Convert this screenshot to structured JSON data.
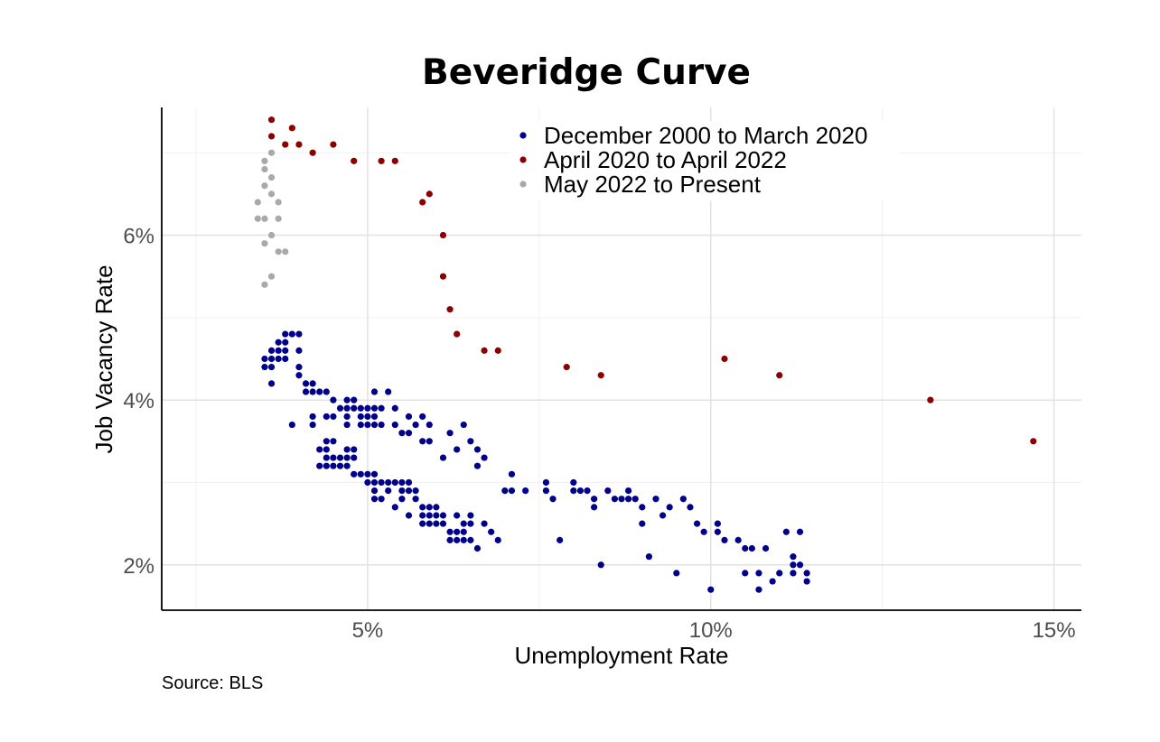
{
  "chart_data": {
    "type": "scatter",
    "title": "Beveridge Curve",
    "xlabel": "Unemployment Rate",
    "ylabel": "Job Vacancy Rate",
    "source": "Source: BLS",
    "xlim": [
      2.0,
      15.4
    ],
    "ylim": [
      1.45,
      7.55
    ],
    "x_ticks": [
      {
        "value": 5,
        "label": "5%"
      },
      {
        "value": 10,
        "label": "10%"
      },
      {
        "value": 15,
        "label": "15%"
      }
    ],
    "y_ticks": [
      {
        "value": 2,
        "label": "2%"
      },
      {
        "value": 4,
        "label": "4%"
      },
      {
        "value": 6,
        "label": "6%"
      }
    ],
    "x_minor": [
      2.5,
      7.5,
      12.5
    ],
    "y_minor": [
      3,
      5,
      7
    ],
    "grid": true,
    "legend_position": "top-right",
    "series": [
      {
        "name": "December 2000 to March 2020",
        "color": "#00008B",
        "points": [
          [
            3.5,
            4.5
          ],
          [
            3.5,
            4.4
          ],
          [
            3.6,
            4.6
          ],
          [
            3.6,
            4.5
          ],
          [
            3.6,
            4.4
          ],
          [
            3.6,
            4.2
          ],
          [
            3.7,
            4.7
          ],
          [
            3.7,
            4.6
          ],
          [
            3.7,
            4.5
          ],
          [
            3.8,
            4.8
          ],
          [
            3.8,
            4.7
          ],
          [
            3.8,
            4.6
          ],
          [
            3.8,
            4.5
          ],
          [
            3.9,
            4.8
          ],
          [
            4.0,
            4.8
          ],
          [
            4.0,
            4.6
          ],
          [
            4.0,
            4.4
          ],
          [
            4.0,
            4.3
          ],
          [
            3.9,
            3.7
          ],
          [
            4.1,
            4.2
          ],
          [
            4.1,
            4.1
          ],
          [
            4.2,
            4.2
          ],
          [
            4.2,
            4.1
          ],
          [
            4.3,
            4.1
          ],
          [
            4.4,
            4.1
          ],
          [
            4.5,
            4.0
          ],
          [
            4.2,
            3.8
          ],
          [
            4.2,
            3.7
          ],
          [
            4.4,
            3.8
          ],
          [
            4.5,
            3.8
          ],
          [
            4.4,
            3.5
          ],
          [
            4.5,
            3.5
          ],
          [
            4.3,
            3.4
          ],
          [
            4.4,
            3.4
          ],
          [
            4.3,
            3.2
          ],
          [
            4.4,
            3.3
          ],
          [
            4.4,
            3.2
          ],
          [
            4.5,
            3.3
          ],
          [
            4.5,
            3.2
          ],
          [
            4.6,
            3.9
          ],
          [
            4.6,
            3.3
          ],
          [
            4.6,
            3.2
          ],
          [
            4.7,
            4.0
          ],
          [
            4.7,
            3.9
          ],
          [
            4.7,
            3.8
          ],
          [
            4.7,
            3.7
          ],
          [
            4.7,
            3.4
          ],
          [
            4.7,
            3.3
          ],
          [
            4.7,
            3.2
          ],
          [
            4.8,
            4.0
          ],
          [
            4.8,
            3.9
          ],
          [
            4.8,
            3.4
          ],
          [
            4.8,
            3.3
          ],
          [
            4.8,
            3.1
          ],
          [
            4.9,
            3.9
          ],
          [
            4.9,
            3.8
          ],
          [
            4.9,
            3.7
          ],
          [
            4.9,
            3.1
          ],
          [
            5.0,
            3.9
          ],
          [
            5.0,
            3.8
          ],
          [
            5.0,
            3.7
          ],
          [
            5.0,
            3.1
          ],
          [
            5.0,
            3.0
          ],
          [
            5.1,
            4.1
          ],
          [
            5.1,
            3.9
          ],
          [
            5.1,
            3.8
          ],
          [
            5.1,
            3.7
          ],
          [
            5.1,
            3.1
          ],
          [
            5.1,
            3.0
          ],
          [
            5.1,
            2.9
          ],
          [
            5.1,
            2.8
          ],
          [
            5.2,
            3.9
          ],
          [
            5.2,
            3.7
          ],
          [
            5.2,
            3.0
          ],
          [
            5.2,
            2.8
          ],
          [
            5.3,
            4.1
          ],
          [
            5.3,
            2.9
          ],
          [
            5.3,
            3.0
          ],
          [
            5.4,
            3.9
          ],
          [
            5.4,
            3.7
          ],
          [
            5.4,
            3.0
          ],
          [
            5.4,
            2.7
          ],
          [
            5.5,
            3.6
          ],
          [
            5.5,
            3.0
          ],
          [
            5.5,
            2.9
          ],
          [
            5.5,
            2.8
          ],
          [
            5.6,
            3.6
          ],
          [
            5.6,
            3.8
          ],
          [
            5.6,
            3.0
          ],
          [
            5.6,
            2.9
          ],
          [
            5.6,
            2.6
          ],
          [
            5.7,
            3.7
          ],
          [
            5.7,
            2.9
          ],
          [
            5.7,
            2.8
          ],
          [
            5.8,
            3.8
          ],
          [
            5.8,
            3.5
          ],
          [
            5.8,
            2.7
          ],
          [
            5.8,
            2.6
          ],
          [
            5.8,
            2.5
          ],
          [
            5.9,
            3.7
          ],
          [
            5.9,
            3.5
          ],
          [
            5.9,
            2.7
          ],
          [
            5.9,
            2.6
          ],
          [
            5.9,
            2.5
          ],
          [
            6.0,
            2.7
          ],
          [
            6.0,
            2.6
          ],
          [
            6.0,
            2.5
          ],
          [
            6.1,
            3.3
          ],
          [
            6.1,
            2.6
          ],
          [
            6.1,
            2.5
          ],
          [
            6.2,
            3.6
          ],
          [
            6.2,
            2.4
          ],
          [
            6.2,
            2.3
          ],
          [
            6.3,
            3.4
          ],
          [
            6.3,
            2.6
          ],
          [
            6.3,
            2.4
          ],
          [
            6.3,
            2.3
          ],
          [
            6.4,
            3.7
          ],
          [
            6.4,
            2.5
          ],
          [
            6.4,
            2.4
          ],
          [
            6.4,
            2.3
          ],
          [
            6.5,
            3.5
          ],
          [
            6.5,
            2.6
          ],
          [
            6.5,
            2.5
          ],
          [
            6.5,
            2.3
          ],
          [
            6.6,
            3.4
          ],
          [
            6.6,
            3.2
          ],
          [
            6.6,
            2.2
          ],
          [
            6.7,
            3.3
          ],
          [
            6.7,
            2.5
          ],
          [
            6.8,
            2.4
          ],
          [
            6.9,
            2.3
          ],
          [
            7.0,
            2.9
          ],
          [
            7.1,
            3.1
          ],
          [
            7.1,
            2.9
          ],
          [
            7.3,
            2.9
          ],
          [
            7.6,
            3.0
          ],
          [
            7.6,
            2.9
          ],
          [
            7.7,
            2.8
          ],
          [
            7.8,
            2.3
          ],
          [
            8.0,
            3.0
          ],
          [
            8.0,
            2.9
          ],
          [
            8.1,
            2.9
          ],
          [
            8.2,
            2.9
          ],
          [
            8.3,
            2.8
          ],
          [
            8.3,
            2.7
          ],
          [
            8.4,
            2.0
          ],
          [
            8.5,
            2.9
          ],
          [
            8.6,
            2.8
          ],
          [
            8.7,
            2.8
          ],
          [
            8.8,
            2.9
          ],
          [
            8.8,
            2.8
          ],
          [
            8.9,
            2.8
          ],
          [
            9.0,
            2.7
          ],
          [
            9.0,
            2.5
          ],
          [
            9.1,
            2.1
          ],
          [
            9.2,
            2.8
          ],
          [
            9.3,
            2.6
          ],
          [
            9.4,
            2.7
          ],
          [
            9.5,
            1.9
          ],
          [
            9.6,
            2.8
          ],
          [
            9.7,
            2.7
          ],
          [
            9.8,
            2.5
          ],
          [
            9.9,
            2.4
          ],
          [
            10.0,
            1.7
          ],
          [
            10.1,
            2.5
          ],
          [
            10.1,
            2.4
          ],
          [
            10.2,
            2.3
          ],
          [
            10.4,
            2.3
          ],
          [
            10.5,
            2.2
          ],
          [
            10.6,
            2.2
          ],
          [
            10.5,
            1.9
          ],
          [
            10.7,
            1.9
          ],
          [
            10.7,
            1.7
          ],
          [
            10.8,
            2.2
          ],
          [
            10.9,
            1.8
          ],
          [
            11.0,
            1.9
          ],
          [
            11.1,
            2.4
          ],
          [
            11.2,
            2.1
          ],
          [
            11.2,
            2.0
          ],
          [
            11.2,
            1.9
          ],
          [
            11.3,
            2.4
          ],
          [
            11.3,
            2.0
          ],
          [
            11.4,
            1.9
          ],
          [
            11.4,
            1.8
          ]
        ]
      },
      {
        "name": "April 2020 to April 2022",
        "color": "#8B0000",
        "points": [
          [
            3.6,
            7.4
          ],
          [
            3.6,
            7.2
          ],
          [
            3.8,
            7.1
          ],
          [
            3.9,
            7.3
          ],
          [
            4.0,
            7.1
          ],
          [
            4.2,
            7.0
          ],
          [
            4.5,
            7.1
          ],
          [
            4.8,
            6.9
          ],
          [
            5.2,
            6.9
          ],
          [
            5.4,
            6.9
          ],
          [
            5.8,
            6.4
          ],
          [
            5.9,
            6.5
          ],
          [
            6.1,
            6.0
          ],
          [
            6.1,
            5.5
          ],
          [
            6.2,
            5.1
          ],
          [
            6.3,
            4.8
          ],
          [
            6.7,
            4.6
          ],
          [
            6.9,
            4.6
          ],
          [
            7.9,
            4.4
          ],
          [
            8.4,
            4.3
          ],
          [
            10.2,
            4.5
          ],
          [
            11.0,
            4.3
          ],
          [
            13.2,
            4.0
          ],
          [
            14.7,
            3.5
          ]
        ]
      },
      {
        "name": "May 2022 to Present",
        "color": "#A9A9A9",
        "points": [
          [
            3.4,
            6.4
          ],
          [
            3.4,
            6.2
          ],
          [
            3.5,
            6.9
          ],
          [
            3.5,
            6.8
          ],
          [
            3.5,
            6.6
          ],
          [
            3.5,
            6.2
          ],
          [
            3.5,
            5.9
          ],
          [
            3.5,
            5.4
          ],
          [
            3.6,
            7.0
          ],
          [
            3.6,
            6.7
          ],
          [
            3.6,
            6.5
          ],
          [
            3.6,
            6.0
          ],
          [
            3.6,
            5.5
          ],
          [
            3.7,
            6.4
          ],
          [
            3.7,
            6.2
          ],
          [
            3.7,
            5.8
          ],
          [
            3.8,
            5.8
          ]
        ]
      }
    ]
  }
}
